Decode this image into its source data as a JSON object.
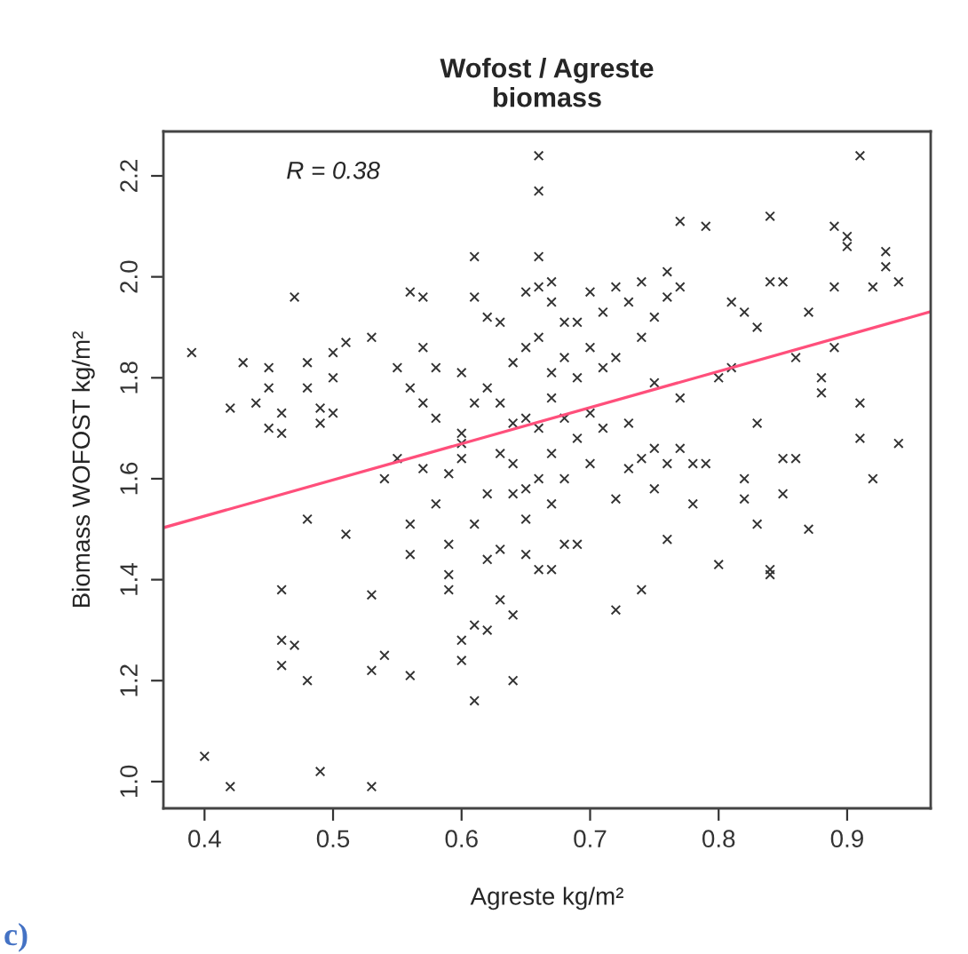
{
  "chart_data": {
    "type": "scatter",
    "title": "Wofost / Agreste\nbiomass",
    "xlabel": "Agreste kg/m²",
    "ylabel": "Biomass WOFOST kg/m²",
    "annotations": [
      "R = 0.38",
      "c)"
    ],
    "xlim": [
      0.368,
      0.965
    ],
    "ylim": [
      0.947,
      2.288
    ],
    "xticks": [
      0.4,
      0.5,
      0.6,
      0.7,
      0.8,
      0.9
    ],
    "yticks": [
      {
        "value": 1.0,
        "label": "1.0"
      },
      1.2,
      1.4,
      1.6,
      1.8,
      {
        "value": 2.0,
        "label": "2.0"
      },
      2.2
    ],
    "grid": false,
    "legend": false,
    "series": [
      {
        "marker": "cross",
        "color": "#333333",
        "x": [
          0.39,
          0.4,
          0.42,
          0.42,
          0.43,
          0.44,
          0.45,
          0.45,
          0.45,
          0.46,
          0.46,
          0.46,
          0.46,
          0.46,
          0.47,
          0.47,
          0.48,
          0.48,
          0.48,
          0.48,
          0.49,
          0.49,
          0.49,
          0.5,
          0.5,
          0.5,
          0.51,
          0.51,
          0.53,
          0.53,
          0.53,
          0.53,
          0.54,
          0.54,
          0.55,
          0.55,
          0.56,
          0.56,
          0.56,
          0.56,
          0.56,
          0.57,
          0.57,
          0.57,
          0.57,
          0.58,
          0.58,
          0.58,
          0.59,
          0.59,
          0.59,
          0.59,
          0.6,
          0.6,
          0.6,
          0.6,
          0.6,
          0.6,
          0.61,
          0.61,
          0.61,
          0.61,
          0.61,
          0.61,
          0.62,
          0.62,
          0.62,
          0.62,
          0.62,
          0.63,
          0.63,
          0.63,
          0.63,
          0.63,
          0.64,
          0.64,
          0.64,
          0.64,
          0.64,
          0.64,
          0.65,
          0.65,
          0.65,
          0.65,
          0.65,
          0.65,
          0.66,
          0.66,
          0.66,
          0.66,
          0.66,
          0.66,
          0.66,
          0.66,
          0.67,
          0.67,
          0.67,
          0.67,
          0.67,
          0.67,
          0.67,
          0.68,
          0.68,
          0.68,
          0.68,
          0.68,
          0.69,
          0.69,
          0.69,
          0.69,
          0.7,
          0.7,
          0.7,
          0.7,
          0.71,
          0.71,
          0.71,
          0.72,
          0.72,
          0.72,
          0.72,
          0.73,
          0.73,
          0.73,
          0.74,
          0.74,
          0.74,
          0.74,
          0.75,
          0.75,
          0.75,
          0.75,
          0.76,
          0.76,
          0.76,
          0.76,
          0.77,
          0.77,
          0.77,
          0.77,
          0.78,
          0.78,
          0.79,
          0.79,
          0.8,
          0.8,
          0.81,
          0.81,
          0.82,
          0.82,
          0.82,
          0.83,
          0.83,
          0.83,
          0.84,
          0.84,
          0.84,
          0.84,
          0.85,
          0.85,
          0.85,
          0.86,
          0.86,
          0.87,
          0.87,
          0.88,
          0.88,
          0.89,
          0.89,
          0.89,
          0.9,
          0.9,
          0.91,
          0.91,
          0.91,
          0.92,
          0.92,
          0.93,
          0.93,
          0.94,
          0.94
        ],
        "values": [
          1.85,
          1.05,
          0.99,
          1.74,
          1.83,
          1.75,
          1.82,
          1.78,
          1.7,
          1.23,
          1.73,
          1.69,
          1.38,
          1.28,
          1.96,
          1.27,
          1.2,
          1.52,
          1.83,
          1.78,
          1.74,
          1.02,
          1.71,
          1.85,
          1.8,
          1.73,
          1.49,
          1.87,
          1.37,
          1.22,
          0.99,
          1.88,
          1.6,
          1.25,
          1.64,
          1.82,
          1.97,
          1.45,
          1.51,
          1.21,
          1.78,
          1.96,
          1.75,
          1.62,
          1.86,
          1.55,
          1.72,
          1.82,
          1.61,
          1.47,
          1.38,
          1.41,
          1.64,
          1.67,
          1.81,
          1.24,
          1.28,
          1.69,
          1.16,
          2.04,
          1.96,
          1.75,
          1.51,
          1.31,
          1.3,
          1.92,
          1.57,
          1.78,
          1.44,
          1.91,
          1.65,
          1.75,
          1.46,
          1.36,
          1.2,
          1.71,
          1.83,
          1.57,
          1.33,
          1.63,
          1.58,
          1.86,
          1.97,
          1.72,
          1.52,
          1.45,
          2.24,
          2.17,
          2.04,
          1.98,
          1.88,
          1.6,
          1.42,
          1.7,
          1.95,
          1.99,
          1.81,
          1.76,
          1.65,
          1.55,
          1.42,
          1.91,
          1.84,
          1.72,
          1.6,
          1.47,
          1.91,
          1.8,
          1.68,
          1.47,
          1.97,
          1.86,
          1.73,
          1.63,
          1.93,
          1.82,
          1.7,
          1.98,
          1.84,
          1.56,
          1.34,
          1.95,
          1.71,
          1.62,
          1.99,
          1.88,
          1.64,
          1.38,
          1.92,
          1.79,
          1.66,
          1.58,
          2.01,
          1.96,
          1.63,
          1.48,
          2.11,
          1.98,
          1.76,
          1.66,
          1.55,
          1.63,
          2.1,
          1.63,
          1.8,
          1.43,
          1.95,
          1.82,
          1.93,
          1.6,
          1.56,
          1.9,
          1.71,
          1.51,
          2.12,
          1.99,
          1.41,
          1.42,
          1.99,
          1.64,
          1.57,
          1.64,
          1.84,
          1.93,
          1.5,
          1.8,
          1.77,
          2.1,
          1.98,
          1.86,
          2.08,
          2.06,
          2.24,
          1.68,
          1.75,
          1.98,
          1.6,
          2.05,
          2.02,
          1.99,
          1.67
        ]
      },
      {
        "type": "line",
        "marker": "none",
        "color": "#ff4f7b",
        "x": [
          0.368,
          0.965
        ],
        "values": [
          1.503,
          1.931
        ]
      }
    ]
  }
}
